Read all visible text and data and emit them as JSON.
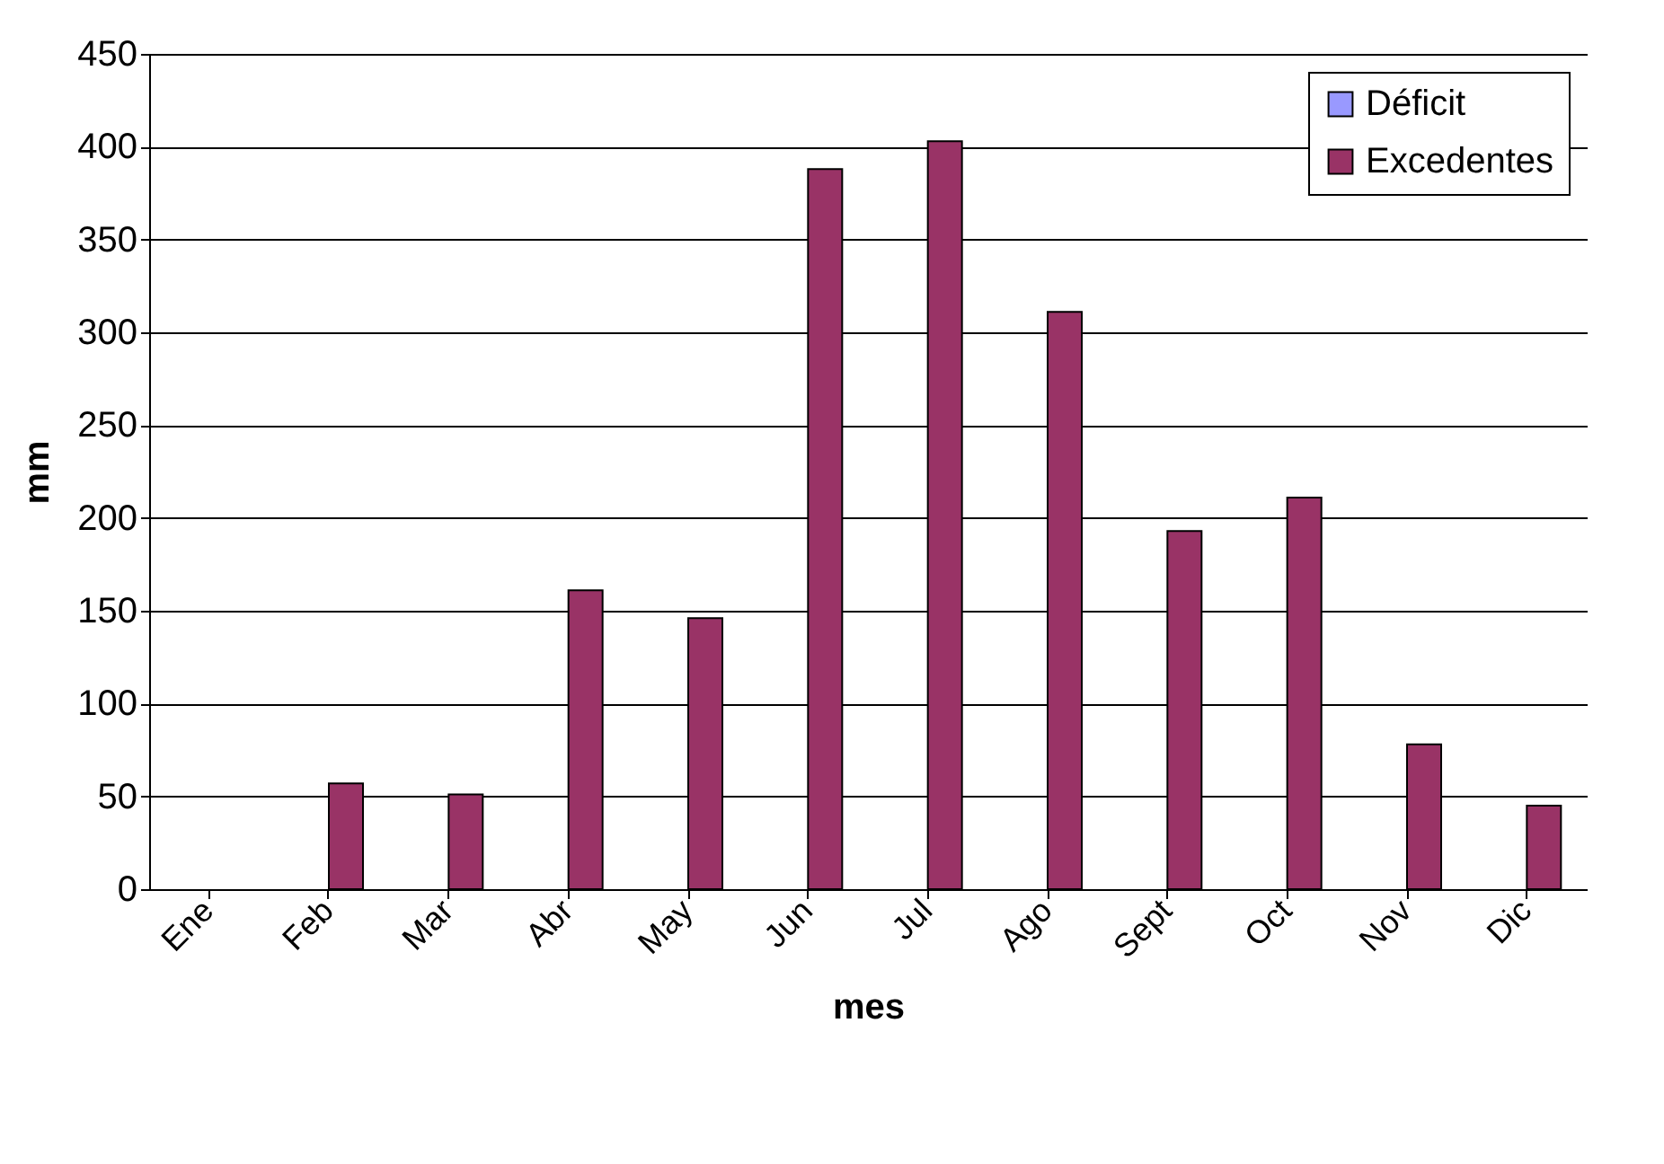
{
  "chart_data": {
    "type": "bar",
    "xlabel": "mes",
    "ylabel": "mm",
    "categories": [
      "Ene",
      "Feb",
      "Mar",
      "Abr",
      "May",
      "Jun",
      "Jul",
      "Ago",
      "Sept",
      "Oct",
      "Nov",
      "Dic"
    ],
    "series": [
      {
        "name": "Déficit",
        "color": "#9999ff",
        "values": [
          null,
          null,
          null,
          null,
          null,
          null,
          null,
          null,
          null,
          null,
          null,
          null
        ]
      },
      {
        "name": "Excedentes",
        "color": "#993366",
        "values": [
          null,
          57,
          51,
          161,
          146,
          388,
          403,
          311,
          193,
          211,
          78,
          45
        ]
      }
    ],
    "ylim": [
      0,
      450
    ],
    "yticks": [
      0,
      50,
      100,
      150,
      200,
      250,
      300,
      350,
      400,
      450
    ],
    "grid": "y",
    "legend": "top right"
  }
}
